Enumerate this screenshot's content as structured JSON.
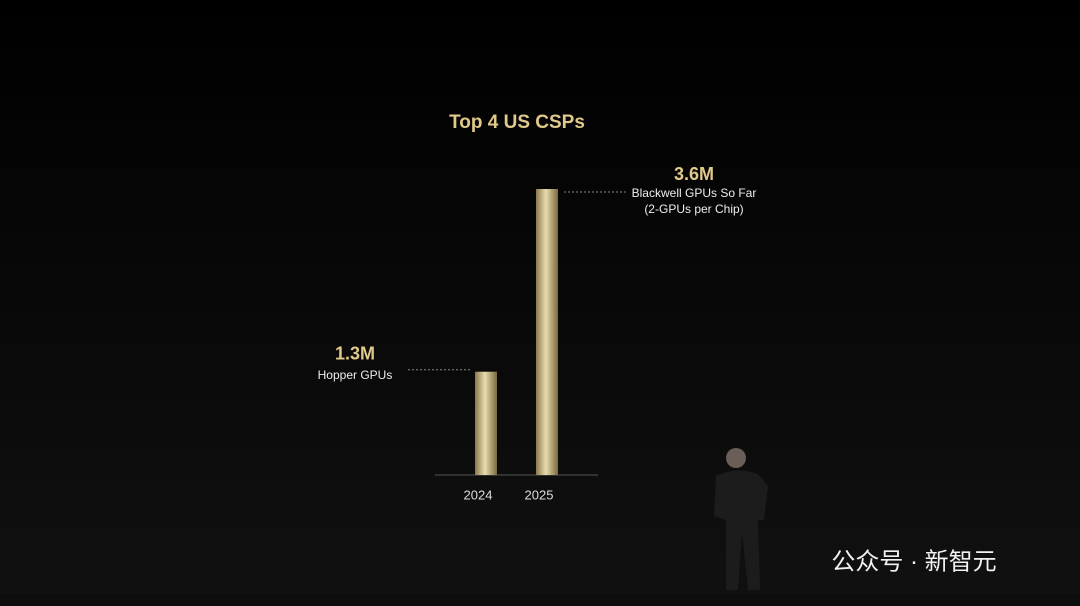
{
  "chart_data": {
    "type": "bar",
    "title": "Top 4 US CSPs",
    "categories": [
      "2024",
      "2025"
    ],
    "values": [
      1300000,
      3600000
    ],
    "value_labels": [
      "1.3M",
      "3.6M"
    ],
    "annotations": [
      [
        "Hopper GPUs"
      ],
      [
        "Blackwell GPUs So Far",
        "(2-GPUs per Chip)"
      ]
    ],
    "color": "#c9b47a"
  },
  "watermark": "公众号 · 新智元"
}
